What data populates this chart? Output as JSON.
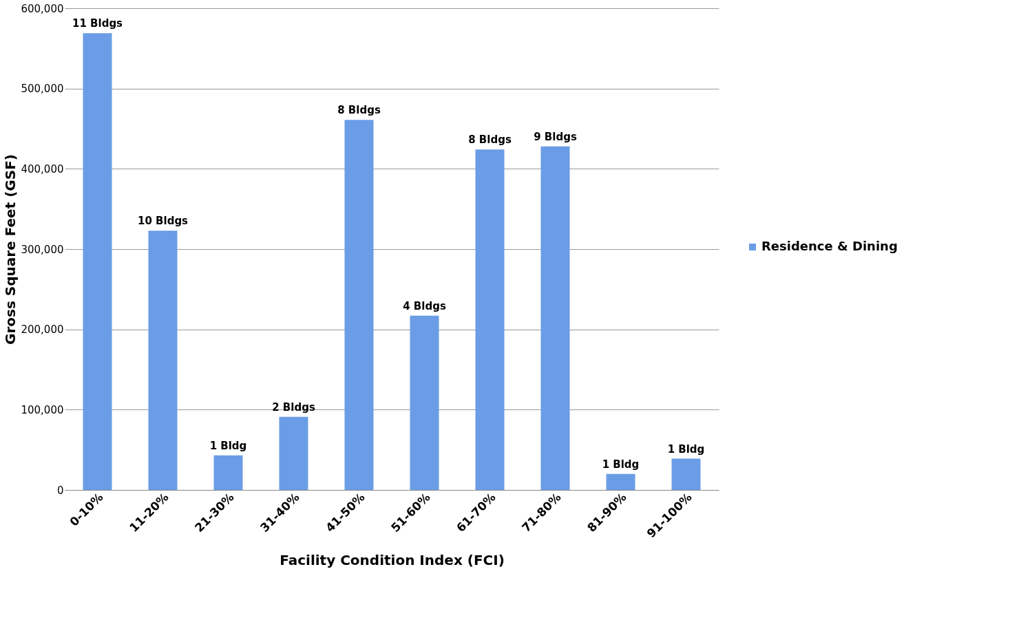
{
  "chart_data": {
    "type": "bar",
    "xlabel": "Facility Condition Index (FCI)",
    "ylabel": "Gross Square Feet (GSF)",
    "categories": [
      "0-10%",
      "11-20%",
      "21-30%",
      "31-40%",
      "41-50%",
      "51-60%",
      "61-70%",
      "71-80%",
      "81-90%",
      "91-100%"
    ],
    "series": [
      {
        "name": "Residence & Dining",
        "color": "#6a9de6",
        "values": [
          569000,
          323000,
          43000,
          91000,
          461000,
          217000,
          424000,
          428000,
          20000,
          39000
        ]
      }
    ],
    "annotations": [
      {
        "text": "11 Bldgs",
        "x": "0-10%",
        "y": 569000
      },
      {
        "text": "10 Bldgs",
        "x": "11-20%",
        "y": 323000
      },
      {
        "text": "1 Bldg",
        "x": "21-30%",
        "y": 43000
      },
      {
        "text": "2 Bldgs",
        "x": "31-40%",
        "y": 91000
      },
      {
        "text": "8 Bldgs",
        "x": "41-50%",
        "y": 461000
      },
      {
        "text": "4 Bldgs",
        "x": "51-60%",
        "y": 217000
      },
      {
        "text": "8 Bldgs",
        "x": "61-70%",
        "y": 424000
      },
      {
        "text": "9 Bldgs",
        "x": "71-80%",
        "y": 428000
      },
      {
        "text": "1 Bldg",
        "x": "81-90%",
        "y": 20000
      },
      {
        "text": "1 Bldg",
        "x": "91-100%",
        "y": 39000
      }
    ],
    "ylim": [
      0,
      600000
    ],
    "yticks": [
      0,
      {
        "value": 100000,
        "label": "100,000"
      },
      {
        "value": 200000,
        "label": "200,000"
      },
      {
        "value": 300000,
        "label": "300,000"
      },
      {
        "value": 400000,
        "label": "400,000"
      },
      {
        "value": 500000,
        "label": "500,000"
      },
      {
        "value": 600000,
        "label": "600,000"
      }
    ],
    "grid": "y",
    "legend": "right"
  }
}
